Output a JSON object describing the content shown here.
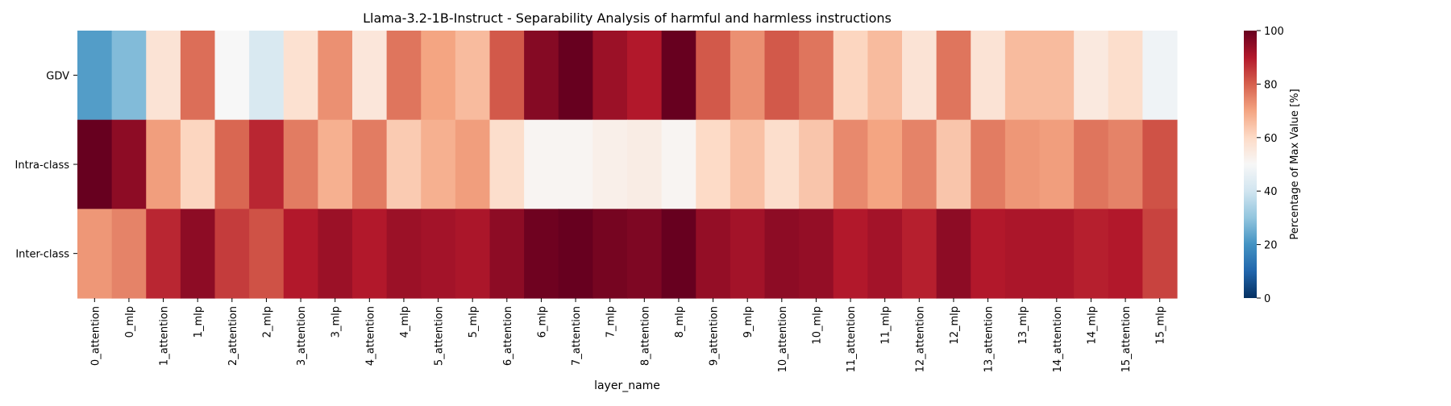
{
  "chart_data": {
    "type": "heatmap",
    "title": "Llama-3.2-1B-Instruct - Separability Analysis of harmful and harmless instructions",
    "xlabel": "layer_name",
    "ylabel": "",
    "x_categories": [
      "0_attention",
      "0_mlp",
      "1_attention",
      "1_mlp",
      "2_attention",
      "2_mlp",
      "3_attention",
      "3_mlp",
      "4_attention",
      "4_mlp",
      "5_attention",
      "5_mlp",
      "6_attention",
      "6_mlp",
      "7_attention",
      "7_mlp",
      "8_attention",
      "8_mlp",
      "9_attention",
      "9_mlp",
      "10_attention",
      "10_mlp",
      "11_attention",
      "11_mlp",
      "12_attention",
      "12_mlp",
      "13_attention",
      "13_mlp",
      "14_attention",
      "14_mlp",
      "15_attention",
      "15_mlp"
    ],
    "y_categories": [
      "GDV",
      "Intra-class",
      "Inter-class"
    ],
    "values": [
      [
        22,
        28,
        57,
        78,
        50,
        42,
        58,
        73,
        56,
        77,
        70,
        66,
        81,
        96,
        100,
        93,
        90,
        100,
        81,
        73,
        81,
        77,
        61,
        66,
        57,
        77,
        57,
        66,
        66,
        55,
        59,
        48
      ],
      [
        100,
        95,
        71,
        61,
        79,
        88,
        76,
        68,
        76,
        63,
        68,
        71,
        59,
        51,
        51,
        53,
        54,
        51,
        60,
        65,
        59,
        64,
        74,
        70,
        75,
        64,
        76,
        72,
        71,
        77,
        75,
        82
      ],
      [
        72,
        75,
        88,
        95,
        85,
        82,
        90,
        93,
        90,
        93,
        92,
        91,
        95,
        99,
        100,
        98,
        97,
        100,
        94,
        92,
        95,
        94,
        90,
        92,
        89,
        95,
        90,
        91,
        91,
        89,
        90,
        84
      ]
    ],
    "colorbar": {
      "label": "Percentage of Max Value [%]",
      "min": 0,
      "max": 100,
      "ticks": [
        0,
        20,
        40,
        60,
        80,
        100
      ],
      "colormap": "RdBu_r"
    },
    "grid": false
  }
}
